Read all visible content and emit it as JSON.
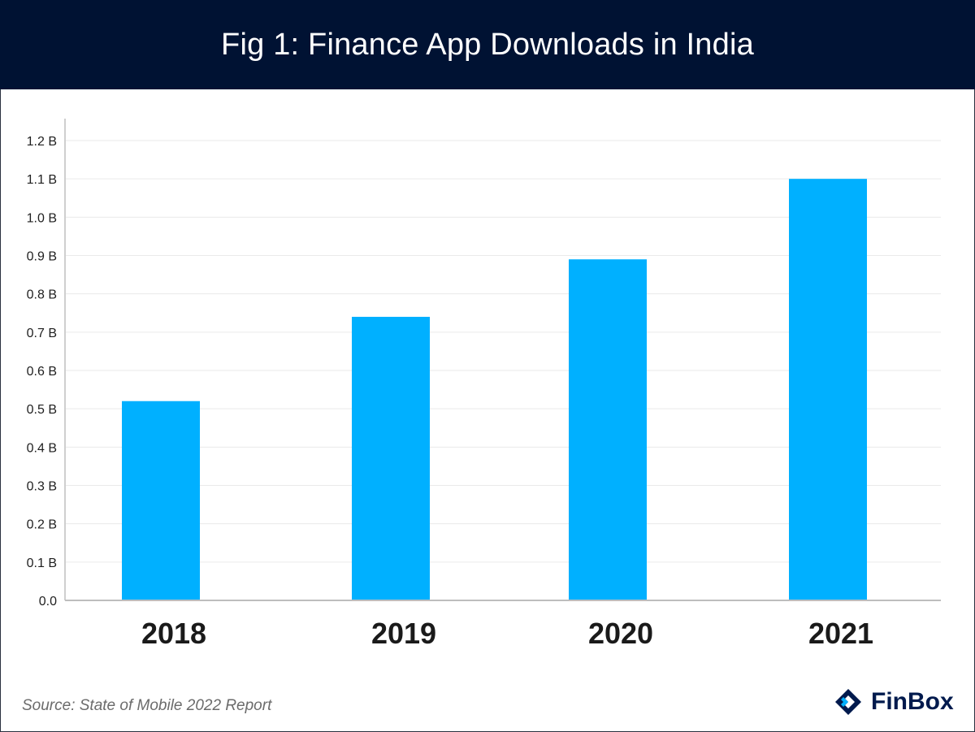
{
  "header": {
    "title": "Fig 1: Finance App Downloads in India"
  },
  "footer": {
    "source": "Source: State of Mobile 2022 Report",
    "brand": "FinBox",
    "logo_icon": "finbox-logo-icon"
  },
  "colors": {
    "bar": "#00B0FF",
    "header_bg": "#001233",
    "brand": "#001A4D",
    "grid": "#eaeaea"
  },
  "chart_data": {
    "type": "bar",
    "title": "Fig 1: Finance App Downloads in India",
    "categories": [
      "2018",
      "2019",
      "2020",
      "2021"
    ],
    "values": [
      0.52,
      0.74,
      0.89,
      1.1
    ],
    "ylim": [
      0,
      1.2
    ],
    "ytick_values": [
      0.0,
      0.1,
      0.2,
      0.3,
      0.4,
      0.5,
      0.6,
      0.7,
      0.8,
      0.9,
      1.0,
      1.1,
      1.2
    ],
    "ytick_labels": [
      "0.0",
      "0.1 B",
      "0.2 B",
      "0.3 B",
      "0.4 B",
      "0.5 B",
      "0.6 B",
      "0.7 B",
      "0.8 B",
      "0.9 B",
      "1.0 B",
      "1.1 B",
      "1.2 B"
    ],
    "grid": true,
    "legend": false
  }
}
